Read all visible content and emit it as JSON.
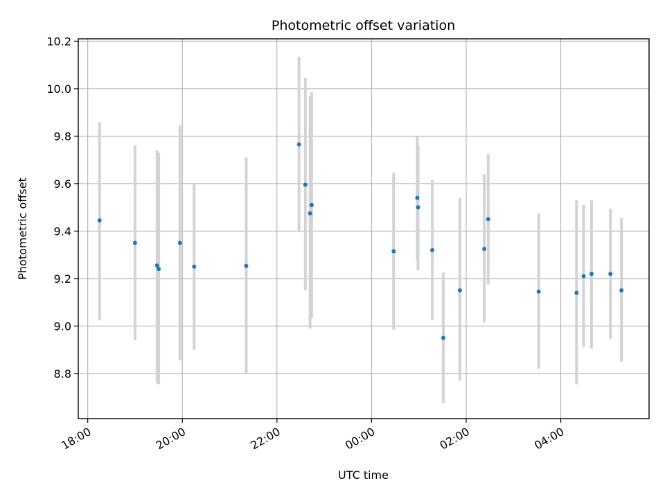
{
  "chart_data": {
    "type": "scatter",
    "title": "Photometric offset variation",
    "xlabel": "UTC time",
    "ylabel": "Photometric offset",
    "x_ticks": [
      "18:00",
      "20:00",
      "22:00",
      "00:00",
      "02:00",
      "04:00"
    ],
    "y_ticks": [
      "8.8",
      "9.0",
      "9.2",
      "9.4",
      "9.6",
      "9.8",
      "10.0",
      "10.2"
    ],
    "xlim": [
      "17:48",
      "05:52"
    ],
    "ylim": [
      8.61,
      10.21
    ],
    "grid": true,
    "colors": {
      "point": "#1f77b4",
      "errorbar": "#d3d3d3",
      "grid": "#b0b0b0"
    },
    "points": [
      {
        "x": "18:15",
        "y": 9.445,
        "y_low": 9.025,
        "y_high": 9.86
      },
      {
        "x": "19:00",
        "y": 9.35,
        "y_low": 8.94,
        "y_high": 9.76
      },
      {
        "x": "19:28",
        "y": 9.255,
        "y_low": 8.76,
        "y_high": 9.74
      },
      {
        "x": "19:30",
        "y": 9.24,
        "y_low": 8.755,
        "y_high": 9.73
      },
      {
        "x": "19:57",
        "y": 9.35,
        "y_low": 8.855,
        "y_high": 9.845
      },
      {
        "x": "20:15",
        "y": 9.25,
        "y_low": 8.9,
        "y_high": 9.6
      },
      {
        "x": "21:21",
        "y": 9.253,
        "y_low": 8.8,
        "y_high": 9.71
      },
      {
        "x": "22:28",
        "y": 9.765,
        "y_low": 9.395,
        "y_high": 10.135
      },
      {
        "x": "22:36",
        "y": 9.595,
        "y_low": 9.15,
        "y_high": 10.045
      },
      {
        "x": "22:42",
        "y": 9.475,
        "y_low": 8.99,
        "y_high": 9.97
      },
      {
        "x": "22:44",
        "y": 9.51,
        "y_low": 9.035,
        "y_high": 9.985
      },
      {
        "x": "00:28",
        "y": 9.315,
        "y_low": 8.985,
        "y_high": 9.645
      },
      {
        "x": "00:58",
        "y": 9.54,
        "y_low": 9.28,
        "y_high": 9.8
      },
      {
        "x": "00:59",
        "y": 9.5,
        "y_low": 9.235,
        "y_high": 9.76
      },
      {
        "x": "01:17",
        "y": 9.32,
        "y_low": 9.025,
        "y_high": 9.615
      },
      {
        "x": "01:31",
        "y": 8.95,
        "y_low": 8.675,
        "y_high": 9.225
      },
      {
        "x": "01:52",
        "y": 9.15,
        "y_low": 8.77,
        "y_high": 9.54
      },
      {
        "x": "02:23",
        "y": 9.325,
        "y_low": 9.015,
        "y_high": 9.64
      },
      {
        "x": "02:28",
        "y": 9.45,
        "y_low": 9.175,
        "y_high": 9.725
      },
      {
        "x": "03:32",
        "y": 9.145,
        "y_low": 8.82,
        "y_high": 9.475
      },
      {
        "x": "04:20",
        "y": 9.14,
        "y_low": 8.755,
        "y_high": 9.53
      },
      {
        "x": "04:29",
        "y": 9.21,
        "y_low": 8.91,
        "y_high": 9.51
      },
      {
        "x": "04:39",
        "y": 9.22,
        "y_low": 8.905,
        "y_high": 9.53
      },
      {
        "x": "05:03",
        "y": 9.22,
        "y_low": 8.945,
        "y_high": 9.495
      },
      {
        "x": "05:17",
        "y": 9.15,
        "y_low": 8.85,
        "y_high": 9.455
      }
    ]
  }
}
